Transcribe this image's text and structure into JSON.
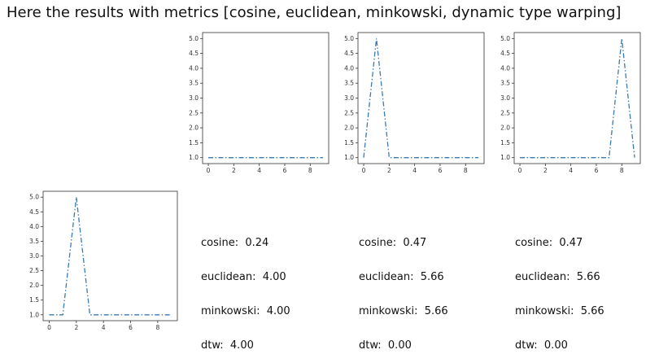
{
  "heading": "Here the results with metrics [cosine, euclidean, minkowski, dynamic type warping]",
  "style": {
    "line_color": "#3a7ab5",
    "axis_color": "#333333"
  },
  "chart_data": [
    {
      "type": "line",
      "x": [
        0,
        1,
        2,
        3,
        4,
        5,
        6,
        7,
        8,
        9
      ],
      "series": [
        {
          "values": [
            1,
            1,
            1,
            1,
            1,
            1,
            1,
            1,
            1,
            1
          ]
        }
      ],
      "xticks": [
        "0",
        "2",
        "4",
        "6",
        "8"
      ],
      "yticks": [
        "1.0",
        "1.5",
        "2.0",
        "2.5",
        "3.0",
        "3.5",
        "4.0",
        "4.5",
        "5.0"
      ],
      "xlim": [
        -0.45,
        9.45
      ],
      "ylim": [
        0.8,
        5.2
      ],
      "line_style": "dashdot"
    },
    {
      "type": "line",
      "x": [
        0,
        1,
        2,
        3,
        4,
        5,
        6,
        7,
        8,
        9
      ],
      "series": [
        {
          "values": [
            1,
            5,
            1,
            1,
            1,
            1,
            1,
            1,
            1,
            1
          ]
        }
      ],
      "xticks": [
        "0",
        "2",
        "4",
        "6",
        "8"
      ],
      "yticks": [
        "1.0",
        "1.5",
        "2.0",
        "2.5",
        "3.0",
        "3.5",
        "4.0",
        "4.5",
        "5.0"
      ],
      "xlim": [
        -0.45,
        9.45
      ],
      "ylim": [
        0.8,
        5.2
      ],
      "line_style": "dashdot"
    },
    {
      "type": "line",
      "x": [
        0,
        1,
        2,
        3,
        4,
        5,
        6,
        7,
        8,
        9
      ],
      "series": [
        {
          "values": [
            1,
            1,
            1,
            1,
            1,
            1,
            1,
            1,
            5,
            1
          ]
        }
      ],
      "xticks": [
        "0",
        "2",
        "4",
        "6",
        "8"
      ],
      "yticks": [
        "1.0",
        "1.5",
        "2.0",
        "2.5",
        "3.0",
        "3.5",
        "4.0",
        "4.5",
        "5.0"
      ],
      "xlim": [
        -0.45,
        9.45
      ],
      "ylim": [
        0.8,
        5.2
      ],
      "line_style": "dashdot"
    },
    {
      "type": "line",
      "x": [
        0,
        1,
        2,
        3,
        4,
        5,
        6,
        7,
        8,
        9
      ],
      "series": [
        {
          "values": [
            1,
            1,
            5,
            1,
            1,
            1,
            1,
            1,
            1,
            1
          ]
        }
      ],
      "xticks": [
        "0",
        "2",
        "4",
        "6",
        "8"
      ],
      "yticks": [
        "1.0",
        "1.5",
        "2.0",
        "2.5",
        "3.0",
        "3.5",
        "4.0",
        "4.5",
        "5.0"
      ],
      "xlim": [
        -0.45,
        9.45
      ],
      "ylim": [
        0.8,
        5.2
      ],
      "line_style": "dashdot"
    }
  ],
  "metrics": [
    {
      "cosine": "cosine:  0.24",
      "euclidean": "euclidean:  4.00",
      "minkowski": "minkowski:  4.00",
      "dtw": "dtw:  4.00"
    },
    {
      "cosine": "cosine:  0.47",
      "euclidean": "euclidean:  5.66",
      "minkowski": "minkowski:  5.66",
      "dtw": "dtw:  0.00"
    },
    {
      "cosine": "cosine:  0.47",
      "euclidean": "euclidean:  5.66",
      "minkowski": "minkowski:  5.66",
      "dtw": "dtw:  0.00"
    }
  ]
}
